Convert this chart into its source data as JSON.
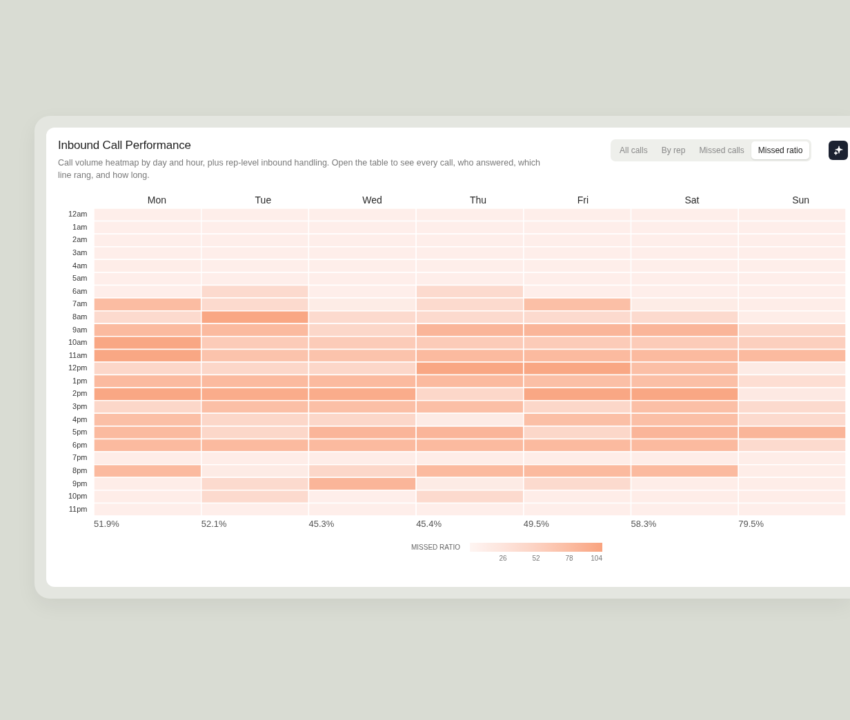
{
  "chart_data": {
    "type": "heatmap",
    "title": "Inbound Call Performance",
    "subtitle": "Call volume heatmap by day and hour, plus rep-level inbound handling. Open the table to see every call, who answered, which line rang, and how long.",
    "categories": [
      "Mon",
      "Tue",
      "Wed",
      "Thu",
      "Fri",
      "Sat",
      "Sun"
    ],
    "y_categories": [
      "12am",
      "1am",
      "2am",
      "3am",
      "4am",
      "5am",
      "6am",
      "7am",
      "8am",
      "9am",
      "10am",
      "11am",
      "12pm",
      "1pm",
      "2pm",
      "3pm",
      "4pm",
      "5pm",
      "6pm",
      "7pm",
      "8pm",
      "9pm",
      "10pm",
      "11pm"
    ],
    "cells": [
      [
        10,
        10,
        10,
        10,
        10,
        10,
        10
      ],
      [
        10,
        10,
        10,
        10,
        10,
        10,
        10
      ],
      [
        10,
        10,
        10,
        10,
        10,
        10,
        10
      ],
      [
        10,
        10,
        10,
        10,
        10,
        10,
        10
      ],
      [
        12,
        10,
        10,
        10,
        10,
        10,
        10
      ],
      [
        10,
        10,
        10,
        10,
        10,
        10,
        10
      ],
      [
        10,
        40,
        10,
        40,
        10,
        10,
        10
      ],
      [
        78,
        40,
        14,
        40,
        75,
        14,
        12
      ],
      [
        40,
        100,
        40,
        40,
        40,
        40,
        12
      ],
      [
        80,
        80,
        45,
        85,
        85,
        85,
        45
      ],
      [
        100,
        60,
        60,
        60,
        60,
        60,
        55
      ],
      [
        100,
        70,
        70,
        80,
        80,
        80,
        80
      ],
      [
        45,
        45,
        45,
        100,
        100,
        75,
        15
      ],
      [
        80,
        80,
        80,
        80,
        75,
        75,
        35
      ],
      [
        100,
        95,
        95,
        45,
        100,
        100,
        18
      ],
      [
        45,
        75,
        75,
        75,
        45,
        75,
        40
      ],
      [
        75,
        45,
        45,
        15,
        75,
        75,
        40
      ],
      [
        80,
        45,
        85,
        85,
        45,
        85,
        85
      ],
      [
        80,
        80,
        80,
        80,
        80,
        80,
        40
      ],
      [
        12,
        12,
        12,
        12,
        12,
        12,
        12
      ],
      [
        80,
        15,
        45,
        80,
        80,
        80,
        12
      ],
      [
        12,
        40,
        85,
        15,
        40,
        12,
        12
      ],
      [
        12,
        40,
        10,
        40,
        12,
        12,
        12
      ],
      [
        10,
        10,
        10,
        10,
        10,
        10,
        10
      ]
    ],
    "clabel": "MISSED RATIO",
    "clim": [
      0,
      104
    ],
    "cticks": [
      26,
      52,
      78,
      104
    ],
    "annotations": [
      "51.9%",
      "52.1%",
      "45.3%",
      "45.4%",
      "49.5%",
      "58.3%",
      "79.5%",
      "All calls",
      "By rep",
      "Missed calls",
      "Missed ratio"
    ]
  }
}
